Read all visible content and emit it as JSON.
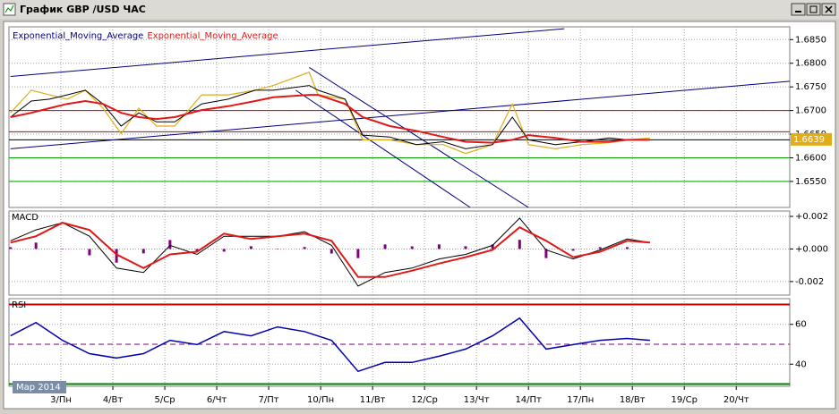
{
  "window": {
    "title": "График GBP /USD ЧАС"
  },
  "chart_data": [
    {
      "type": "line",
      "xlim": [
        -1,
        14.03
      ],
      "ylim": [
        1.6495,
        1.6877
      ],
      "yticks": [
        {
          "value": 1.655,
          "label": "1.6550"
        },
        {
          "value": 1.66,
          "label": "1.6600"
        },
        {
          "value": 1.665,
          "label": "1.6650"
        },
        {
          "value": 1.67,
          "label": "1.6700"
        },
        {
          "value": 1.675,
          "label": "1.6750"
        },
        {
          "value": 1.68,
          "label": "1.6800"
        },
        {
          "value": 1.685,
          "label": "1.6850"
        }
      ],
      "x": [
        -0.97,
        -0.57,
        -0.22,
        0.12,
        0.47,
        0.81,
        1.16,
        1.5,
        1.84,
        2.19,
        2.71,
        3.22,
        3.74,
        4.09,
        4.78,
        4.95,
        5.47,
        5.81,
        6.33,
        6.84,
        7.36,
        7.79,
        8.31,
        8.69,
        9.0,
        9.52,
        10.03,
        10.55,
        10.9,
        11.34
      ],
      "series": [
        {
          "color": "#e0ac18",
          "width": 1.2,
          "values": [
            1.6695,
            1.6743,
            1.6733,
            1.6724,
            1.6743,
            1.6705,
            1.6651,
            1.6705,
            1.6667,
            1.6667,
            1.6733,
            1.6733,
            1.6743,
            1.6753,
            1.6781,
            1.6733,
            1.6724,
            1.6638,
            1.6638,
            1.6628,
            1.6628,
            1.6609,
            1.6628,
            1.6714,
            1.6628,
            1.6619,
            1.6628,
            1.6632,
            1.6638,
            1.6642
          ]
        },
        {
          "name": "Exponential_Moving_Average",
          "color": "#000080",
          "line_color": "#000000",
          "width": 1,
          "values": [
            1.6686,
            1.672,
            1.6724,
            1.6733,
            1.6743,
            1.6714,
            1.6667,
            1.6695,
            1.6676,
            1.6676,
            1.6714,
            1.6724,
            1.6743,
            1.6743,
            1.6753,
            1.6743,
            1.6724,
            1.6648,
            1.6644,
            1.6628,
            1.6634,
            1.6619,
            1.6628,
            1.6686,
            1.6638,
            1.6628,
            1.6634,
            1.6642,
            1.6638,
            1.6638
          ]
        },
        {
          "name": "Exponential_Moving_Average",
          "color": "#e01818",
          "line_color": "#e01818",
          "width": 2,
          "values": [
            1.6686,
            1.6695,
            1.6705,
            1.6714,
            1.672,
            1.6714,
            1.6695,
            1.6686,
            1.6682,
            1.6686,
            1.6701,
            1.6709,
            1.672,
            1.6728,
            1.6733,
            1.6733,
            1.6714,
            1.6686,
            1.6667,
            1.6657,
            1.6644,
            1.6634,
            1.6632,
            1.6638,
            1.6648,
            1.6642,
            1.6634,
            1.6634,
            1.6638,
            1.6638
          ]
        }
      ],
      "hlines": [
        {
          "value": 1.67,
          "color": "#d00000"
        },
        {
          "value": 1.6655,
          "color": "#d00000"
        },
        {
          "value": 1.6638,
          "color": "#000000"
        },
        {
          "value": 1.66,
          "color": "#00a000"
        },
        {
          "value": 1.655,
          "color": "#00a000"
        }
      ],
      "trendlines": [
        {
          "x1": -0.97,
          "y1": 1.6772,
          "x2": 9.69,
          "y2": 1.6873,
          "color": "#000080"
        },
        {
          "x1": -0.97,
          "y1": 1.6619,
          "x2": 14.03,
          "y2": 1.6762,
          "color": "#000080"
        },
        {
          "x1": 4.78,
          "y1": 1.6791,
          "x2": 9.0,
          "y2": 1.6495,
          "color": "#000080"
        },
        {
          "x1": 4.52,
          "y1": 1.6743,
          "x2": 7.88,
          "y2": 1.6495,
          "color": "#000080"
        }
      ],
      "last_price": 1.6639,
      "grid": true
    },
    {
      "type": "combo",
      "title": "MACD",
      "xlim": [
        -1,
        14.03
      ],
      "ylim": [
        -0.00283,
        0.00233
      ],
      "yticks": [
        {
          "value": -0.002,
          "label": "-0.002"
        },
        {
          "value": 0,
          "label": "+0.000"
        },
        {
          "value": 0.002,
          "label": "+0.002"
        }
      ],
      "x": [
        -0.97,
        -0.48,
        0.03,
        0.55,
        1.07,
        1.59,
        2.1,
        2.62,
        3.14,
        3.66,
        4.17,
        4.69,
        5.21,
        5.72,
        6.24,
        6.76,
        7.28,
        7.79,
        8.31,
        8.83,
        9.34,
        9.86,
        10.38,
        10.9,
        11.34
      ],
      "series": [
        {
          "color": "#800080",
          "style": "histogram",
          "values": [
            0.00011,
            0.00039,
            0,
            -0.00039,
            -0.00084,
            -0.00027,
            0.00055,
            -0.00016,
            -0.00016,
            0.00017,
            0,
            0.00012,
            -0.00028,
            -0.00056,
            0.00028,
            0.00016,
            0.00028,
            0.00017,
            0.00028,
            0.00056,
            -0.00056,
            -0.00011,
            0.00011,
            0.00011,
            0
          ]
        },
        {
          "color": "#000000",
          "width": 1,
          "values": [
            0.0005,
            0.00117,
            0.00161,
            0.00078,
            -0.00117,
            -0.00144,
            0.00022,
            -0.00033,
            0.00078,
            0.00078,
            0.00078,
            0.00106,
            0.00022,
            -0.00228,
            -0.00144,
            -0.00117,
            -0.00061,
            -0.00033,
            0.00022,
            0.00189,
            -6e-05,
            -0.00061,
            -6e-05,
            0.00061,
            0.00039
          ]
        },
        {
          "color": "#e01818",
          "width": 2,
          "values": [
            0.00039,
            0.00078,
            0.00161,
            0.00117,
            -0.00033,
            -0.00117,
            -0.00033,
            -0.00017,
            0.00094,
            0.00061,
            0.00078,
            0.00094,
            0.0005,
            -0.00172,
            -0.00172,
            -0.00133,
            -0.00089,
            -0.0005,
            -6e-05,
            0.00133,
            0.0005,
            -0.0005,
            -0.00017,
            0.0005,
            0.00039
          ]
        }
      ],
      "grid": true
    },
    {
      "type": "line",
      "title": "RSI",
      "xlim": [
        -1,
        14.03
      ],
      "ylim": [
        28.9,
        72.9
      ],
      "yticks": [
        40,
        60
      ],
      "xticks": [
        {
          "value": 0,
          "label": "3/Пн"
        },
        {
          "value": 1,
          "label": "4/Вт"
        },
        {
          "value": 2,
          "label": "5/Ср"
        },
        {
          "value": 3,
          "label": "6/Чт"
        },
        {
          "value": 4,
          "label": "7/Пт"
        },
        {
          "value": 5,
          "label": "10/Пн"
        },
        {
          "value": 6,
          "label": "11/Вт"
        },
        {
          "value": 7,
          "label": "12/Ср"
        },
        {
          "value": 8,
          "label": "13/Чт"
        },
        {
          "value": 9,
          "label": "14/Пт"
        },
        {
          "value": 10,
          "label": "17/Пн"
        },
        {
          "value": 11,
          "label": "18/Вт"
        },
        {
          "value": 12,
          "label": "19/Ср"
        },
        {
          "value": 13,
          "label": "20/Чт"
        }
      ],
      "x": [
        -0.97,
        -0.48,
        0.03,
        0.55,
        1.07,
        1.59,
        2.1,
        2.62,
        3.14,
        3.66,
        4.17,
        4.69,
        5.21,
        5.72,
        6.24,
        6.76,
        7.28,
        7.79,
        8.31,
        8.83,
        9.34,
        9.86,
        10.38,
        10.9,
        11.34
      ],
      "series": [
        {
          "color": "#0000b0",
          "width": 1.5,
          "values": [
            54.2,
            60.9,
            52,
            45.3,
            43.1,
            45.3,
            52,
            49.8,
            56.4,
            54.2,
            58.7,
            56.4,
            52,
            36.4,
            40.9,
            40.9,
            44,
            47.6,
            54.2,
            63.1,
            47.6,
            49.8,
            52,
            52.9,
            52
          ]
        }
      ],
      "hlines": [
        {
          "value": 70,
          "color": "#c00000",
          "width": 2
        },
        {
          "value": 50,
          "color": "#800080",
          "dash": true
        },
        {
          "value": 30,
          "color": "#008000",
          "width": 2
        }
      ],
      "period_label": "Мар 2014",
      "grid": true
    }
  ]
}
